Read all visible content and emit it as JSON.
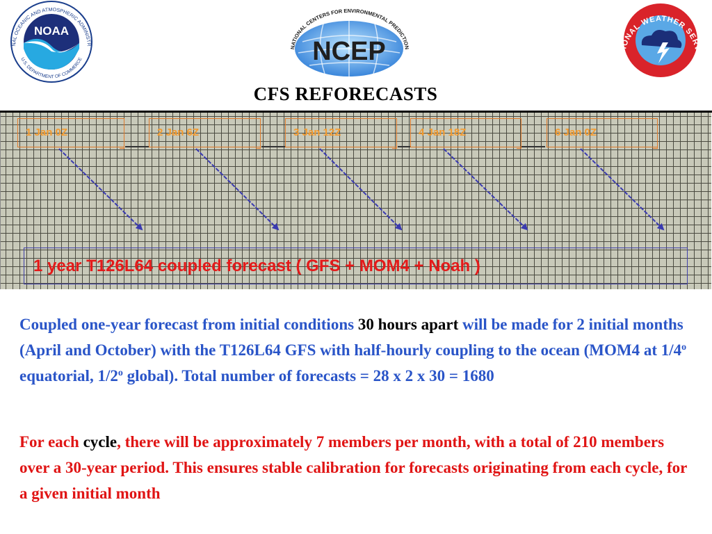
{
  "header": {
    "title": "CFS REFORECASTS",
    "logos": {
      "noaa": {
        "center_text": "NOAA",
        "ring_text": "NATIONAL OCEANIC AND ATMOSPHERIC ADMINISTRATION",
        "bottom_text": "U.S. DEPARTMENT OF COMMERCE"
      },
      "ncep": {
        "center_text": "NCEP",
        "ring_text": "NATIONAL CENTERS FOR ENVIRONMENTAL PREDICTION"
      },
      "nws": {
        "ring_text": "NATIONAL WEATHER SERVICE"
      }
    }
  },
  "diagram": {
    "initial_conditions": [
      "1 Jan 0Z",
      "2 Jan 6Z",
      "3 Jan 12Z",
      "4 Jan 18Z",
      "6 Jan 0Z"
    ],
    "forecast_label": "1 year T126L64 coupled forecast ( GFS + MOM4 + Noah )",
    "colors": {
      "grid_bg": "#c8c9b9",
      "grid_line": "#4a4a40",
      "box_text": "#f39a2e",
      "box_border": "#e07a2a",
      "arrow": "#3a3ab0",
      "forecast_text": "#e41a1a"
    }
  },
  "body": {
    "para1": {
      "part1": "Coupled one-year forecast from initial conditions ",
      "highlight": "30 hours apart",
      "part2": " will be made for 2 initial months (April and October) with the T126L64 GFS with half-hourly coupling to the ocean (MOM4 at 1/4",
      "sup1": "o",
      "part3": " equatorial, 1/2",
      "sup2": "o",
      "part4": " global). Total number of forecasts = 28 x 2 x 30 = 1680",
      "color": "#2a55c8"
    },
    "para2": {
      "part1": "For each ",
      "highlight": "cycle",
      "part2": ", there will be approximately 7 members per month, with a total of 210 members over a 30-year period. This ensures stable calibration for forecasts originating from each cycle, for a given initial month",
      "color": "#e01414"
    }
  }
}
